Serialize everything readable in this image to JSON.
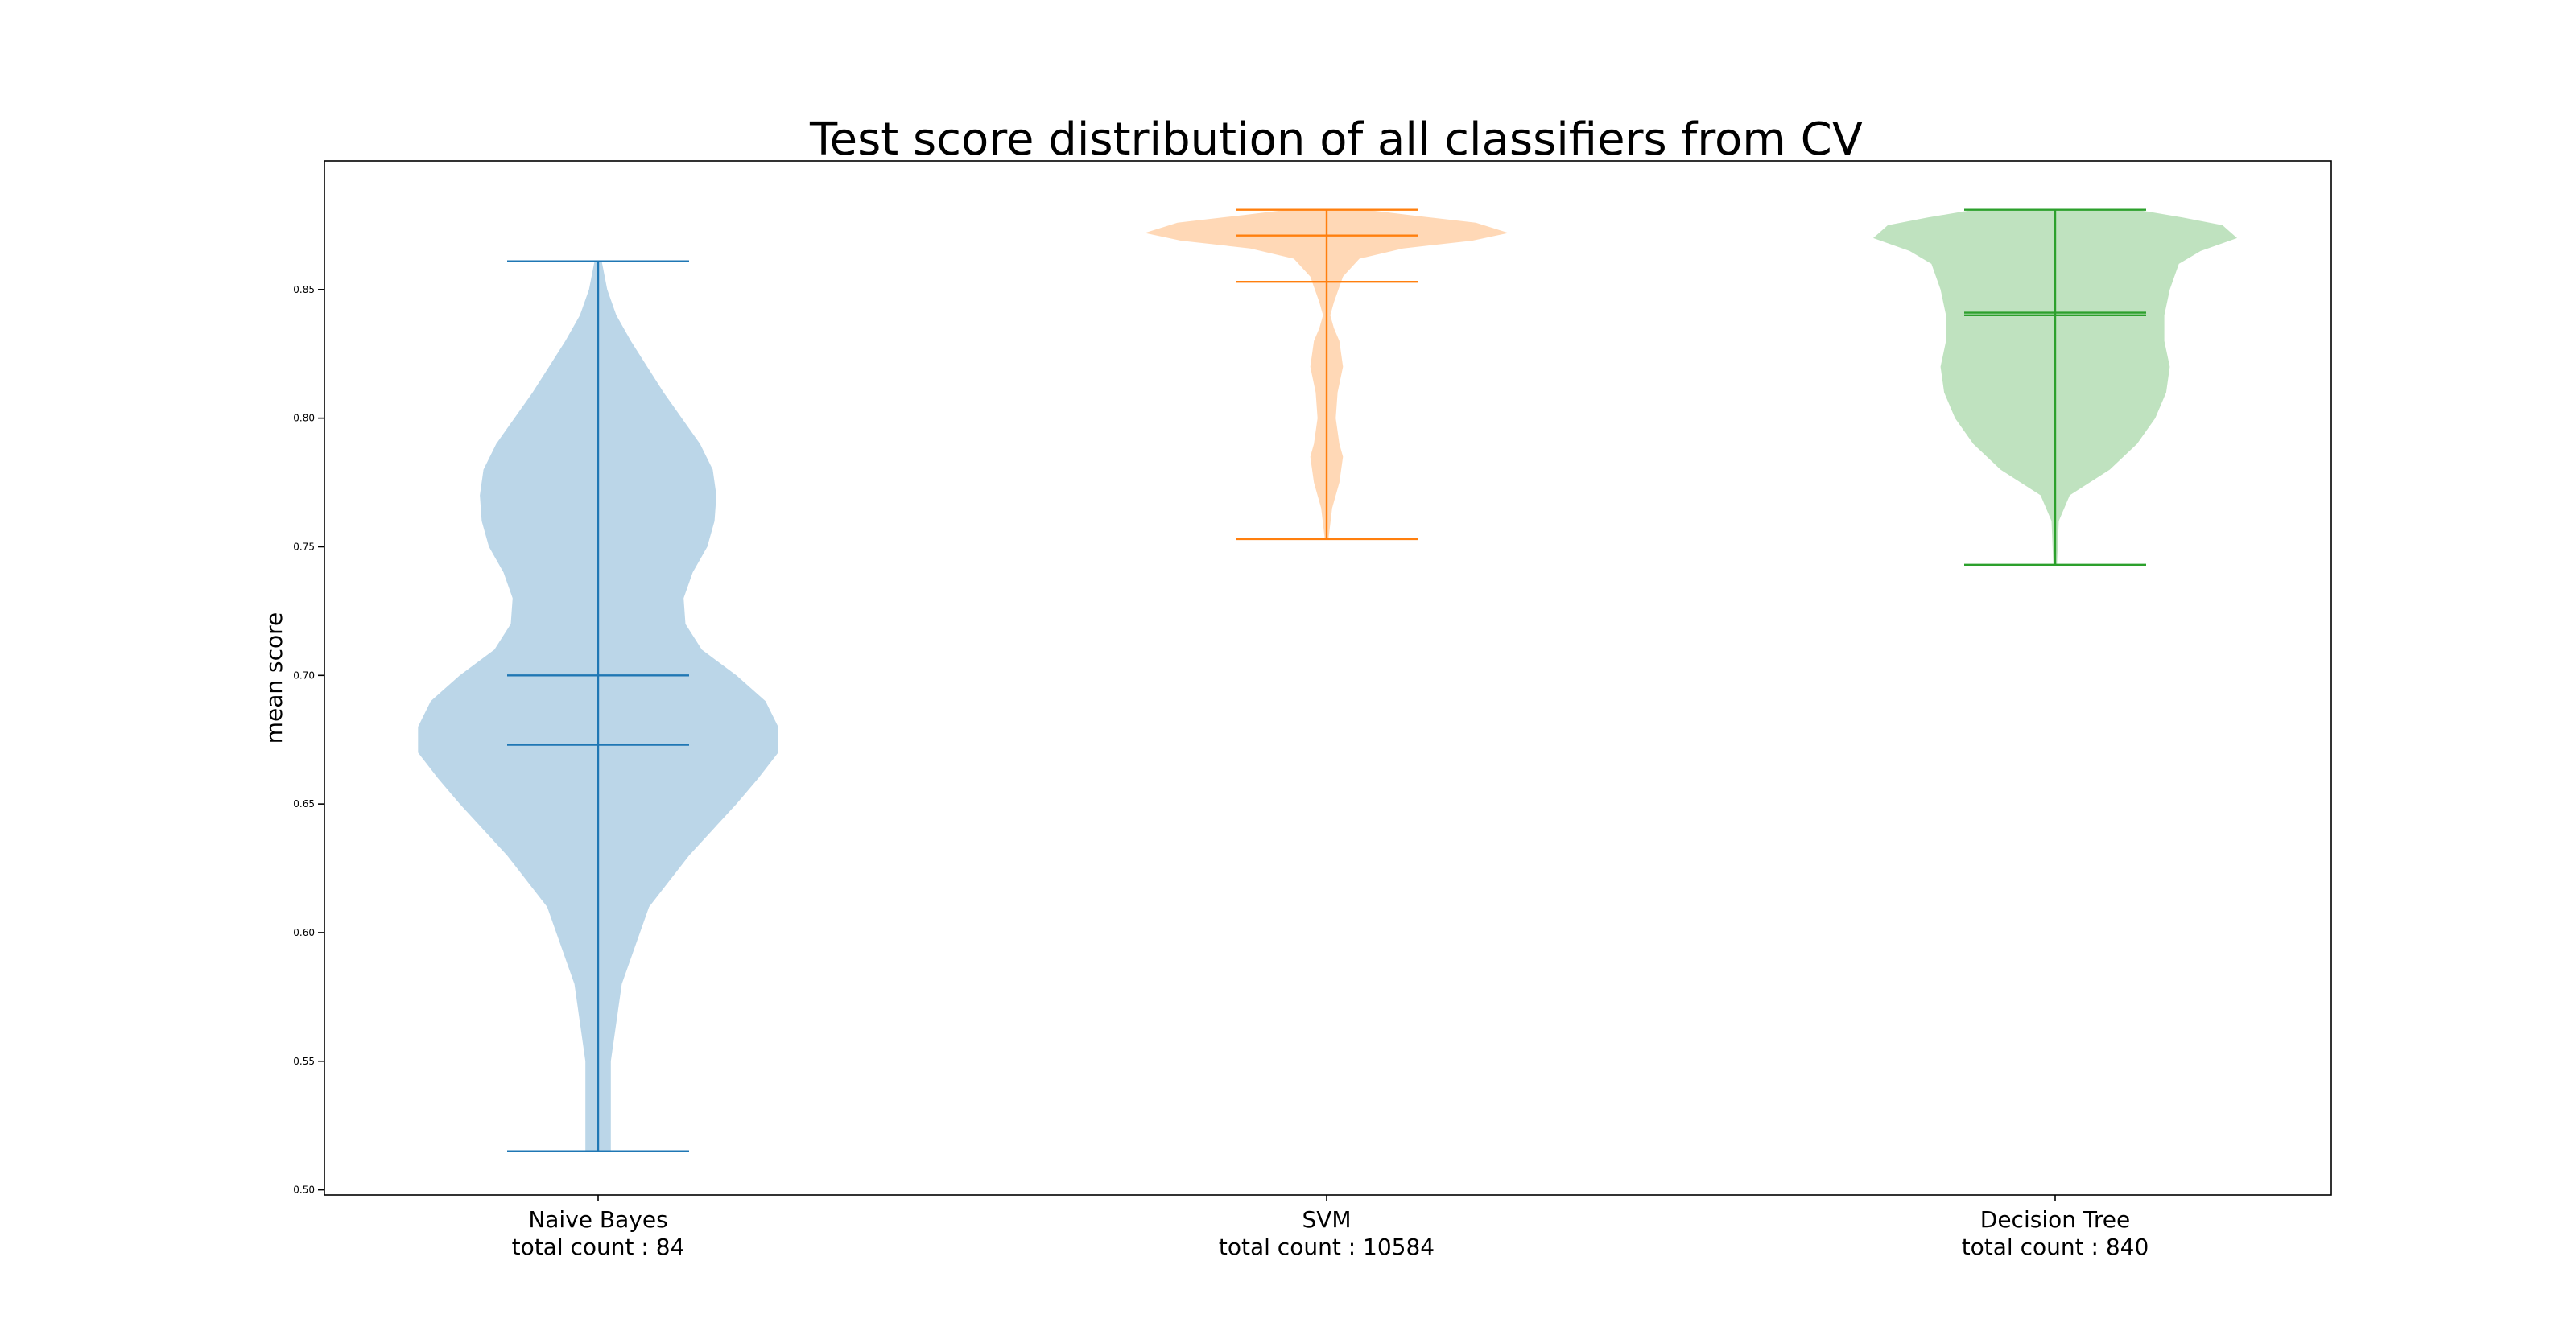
{
  "chart_data": {
    "type": "violin",
    "title": "Test score distribution of all classifiers from CV",
    "xlabel": "",
    "ylabel": "mean score",
    "ylim": [
      0.498,
      0.9
    ],
    "yticks": [
      "0.50",
      "0.55",
      "0.60",
      "0.65",
      "0.70",
      "0.75",
      "0.80",
      "0.85"
    ],
    "grid": false,
    "series": [
      {
        "name": "Naive Bayes",
        "label_line1": "Naive Bayes",
        "label_line2": "total count : 84",
        "color": "#1f77b4",
        "fill": "#1f77b4",
        "min": 0.515,
        "max": 0.861,
        "mean": 0.7,
        "median": 0.673,
        "density": [
          [
            0.515,
            0.07
          ],
          [
            0.55,
            0.07
          ],
          [
            0.58,
            0.13
          ],
          [
            0.61,
            0.28
          ],
          [
            0.63,
            0.5
          ],
          [
            0.65,
            0.76
          ],
          [
            0.66,
            0.88
          ],
          [
            0.67,
            0.99
          ],
          [
            0.68,
            0.99
          ],
          [
            0.69,
            0.92
          ],
          [
            0.7,
            0.76
          ],
          [
            0.71,
            0.57
          ],
          [
            0.72,
            0.48
          ],
          [
            0.73,
            0.47
          ],
          [
            0.74,
            0.52
          ],
          [
            0.75,
            0.6
          ],
          [
            0.76,
            0.64
          ],
          [
            0.77,
            0.65
          ],
          [
            0.78,
            0.63
          ],
          [
            0.79,
            0.56
          ],
          [
            0.8,
            0.46
          ],
          [
            0.81,
            0.36
          ],
          [
            0.82,
            0.27
          ],
          [
            0.83,
            0.18
          ],
          [
            0.84,
            0.1
          ],
          [
            0.85,
            0.05
          ],
          [
            0.861,
            0.02
          ]
        ]
      },
      {
        "name": "SVM",
        "label_line1": "SVM",
        "label_line2": "total count : 10584",
        "color": "#ff7f0e",
        "fill": "#ff7f0e",
        "min": 0.753,
        "max": 0.881,
        "mean": 0.853,
        "median": 0.871,
        "density": [
          [
            0.753,
            0.01
          ],
          [
            0.765,
            0.03
          ],
          [
            0.775,
            0.07
          ],
          [
            0.785,
            0.09
          ],
          [
            0.79,
            0.07
          ],
          [
            0.8,
            0.05
          ],
          [
            0.81,
            0.06
          ],
          [
            0.82,
            0.09
          ],
          [
            0.83,
            0.07
          ],
          [
            0.835,
            0.04
          ],
          [
            0.84,
            0.02
          ],
          [
            0.845,
            0.04
          ],
          [
            0.855,
            0.09
          ],
          [
            0.862,
            0.18
          ],
          [
            0.866,
            0.42
          ],
          [
            0.869,
            0.8
          ],
          [
            0.872,
            1.0
          ],
          [
            0.876,
            0.82
          ],
          [
            0.879,
            0.45
          ],
          [
            0.881,
            0.22
          ]
        ]
      },
      {
        "name": "Decision Tree",
        "label_line1": "Decision Tree",
        "label_line2": "total count : 840",
        "color": "#2ca02c",
        "fill": "#2ca02c",
        "min": 0.743,
        "max": 0.881,
        "mean": 0.84,
        "median": 0.841,
        "density": [
          [
            0.743,
            0.01
          ],
          [
            0.76,
            0.02
          ],
          [
            0.77,
            0.08
          ],
          [
            0.78,
            0.3
          ],
          [
            0.79,
            0.45
          ],
          [
            0.8,
            0.55
          ],
          [
            0.81,
            0.61
          ],
          [
            0.82,
            0.63
          ],
          [
            0.83,
            0.6
          ],
          [
            0.84,
            0.6
          ],
          [
            0.85,
            0.63
          ],
          [
            0.86,
            0.68
          ],
          [
            0.865,
            0.8
          ],
          [
            0.87,
            1.0
          ],
          [
            0.875,
            0.92
          ],
          [
            0.878,
            0.7
          ],
          [
            0.881,
            0.45
          ]
        ]
      }
    ]
  }
}
